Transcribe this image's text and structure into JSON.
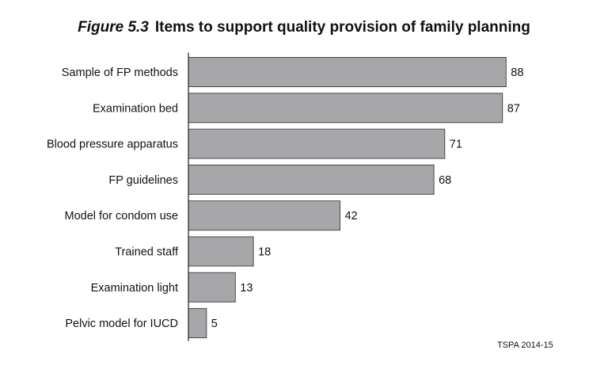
{
  "title": {
    "figure_label": "Figure 5.3",
    "text": "Items to support quality provision of family planning"
  },
  "source": "TSPA 2014-15",
  "chart_data": {
    "type": "bar",
    "orientation": "horizontal",
    "categories": [
      "Sample of FP methods",
      "Examination bed",
      "Blood pressure apparatus",
      "FP guidelines",
      "Model for condom use",
      "Trained staff",
      "Examination light",
      "Pelvic model for IUCD"
    ],
    "values": [
      88,
      87,
      71,
      68,
      42,
      18,
      13,
      5
    ],
    "xlim": [
      0,
      100
    ],
    "grid": false,
    "bar_color": "#a7a7a9",
    "bar_edge_color": "#4a4a4a"
  }
}
